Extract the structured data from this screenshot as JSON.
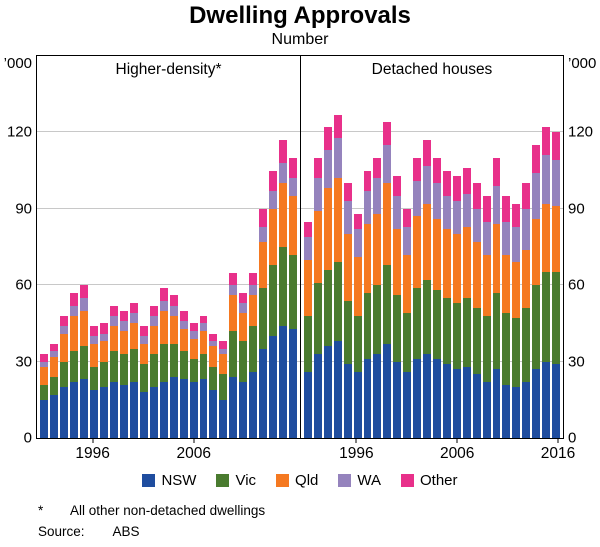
{
  "title": "Dwelling Approvals",
  "subtitle": "Number",
  "y_axis": {
    "unit": "’000",
    "ticks": [
      0,
      30,
      60,
      90,
      120
    ],
    "max": 150
  },
  "footnote": {
    "marker": "*",
    "text": "All other non-detached dwellings"
  },
  "source": {
    "label": "Source:",
    "value": "ABS"
  },
  "chart_data": [
    {
      "type": "bar",
      "stacked": true,
      "panel": "Higher-density*",
      "ylim": [
        0,
        150
      ],
      "years": [
        1991,
        1992,
        1993,
        1994,
        1995,
        1996,
        1997,
        1998,
        1999,
        2000,
        2001,
        2002,
        2003,
        2004,
        2005,
        2006,
        2007,
        2008,
        2009,
        2010,
        2011,
        2012,
        2013,
        2014,
        2015,
        2016
      ],
      "x_tick_labels": [
        "1996",
        "2006"
      ],
      "series": [
        {
          "name": "NSW",
          "color": "#1f4d9f",
          "values": [
            15,
            17,
            20,
            22,
            23,
            19,
            20,
            22,
            21,
            22,
            18,
            20,
            22,
            24,
            23,
            22,
            23,
            19,
            15,
            24,
            22,
            26,
            35,
            40,
            44,
            43
          ]
        },
        {
          "name": "Vic",
          "color": "#4a7b2f",
          "values": [
            6,
            7,
            10,
            12,
            13,
            9,
            10,
            12,
            12,
            13,
            11,
            13,
            15,
            13,
            11,
            9,
            10,
            9,
            10,
            18,
            16,
            18,
            24,
            28,
            31,
            29
          ]
        },
        {
          "name": "Qld",
          "color": "#f57921",
          "values": [
            7,
            8,
            11,
            14,
            14,
            9,
            8,
            10,
            9,
            10,
            8,
            11,
            13,
            11,
            9,
            8,
            9,
            8,
            8,
            14,
            11,
            12,
            18,
            22,
            25,
            23
          ]
        },
        {
          "name": "WA",
          "color": "#9583bd",
          "values": [
            2,
            2,
            3,
            4,
            5,
            3,
            3,
            4,
            4,
            4,
            3,
            4,
            4,
            4,
            3,
            3,
            3,
            2,
            2,
            4,
            4,
            4,
            6,
            7,
            8,
            7
          ]
        },
        {
          "name": "Other",
          "color": "#e8308a",
          "values": [
            3,
            3,
            4,
            5,
            5,
            4,
            4,
            4,
            4,
            4,
            4,
            4,
            5,
            4,
            4,
            3,
            3,
            3,
            3,
            5,
            4,
            5,
            7,
            8,
            9,
            8
          ]
        }
      ]
    },
    {
      "type": "bar",
      "stacked": true,
      "panel": "Detached houses",
      "ylim": [
        0,
        150
      ],
      "years": [
        1991,
        1992,
        1993,
        1994,
        1995,
        1996,
        1997,
        1998,
        1999,
        2000,
        2001,
        2002,
        2003,
        2004,
        2005,
        2006,
        2007,
        2008,
        2009,
        2010,
        2011,
        2012,
        2013,
        2014,
        2015,
        2016
      ],
      "x_tick_labels": [
        "1996",
        "2006",
        "2016"
      ],
      "series": [
        {
          "name": "NSW",
          "color": "#1f4d9f",
          "values": [
            26,
            33,
            36,
            38,
            29,
            26,
            31,
            33,
            37,
            30,
            26,
            31,
            33,
            31,
            29,
            27,
            28,
            25,
            22,
            27,
            21,
            20,
            22,
            27,
            30,
            29
          ]
        },
        {
          "name": "Vic",
          "color": "#4a7b2f",
          "values": [
            22,
            28,
            30,
            31,
            25,
            22,
            26,
            27,
            31,
            26,
            23,
            28,
            29,
            27,
            26,
            26,
            27,
            26,
            26,
            30,
            28,
            27,
            29,
            33,
            35,
            36
          ]
        },
        {
          "name": "Qld",
          "color": "#f57921",
          "values": [
            22,
            28,
            32,
            33,
            26,
            23,
            27,
            28,
            32,
            26,
            23,
            28,
            30,
            28,
            27,
            27,
            28,
            26,
            24,
            27,
            23,
            22,
            23,
            26,
            27,
            26
          ]
        },
        {
          "name": "WA",
          "color": "#9583bd",
          "values": [
            9,
            13,
            15,
            16,
            13,
            11,
            13,
            14,
            15,
            13,
            11,
            14,
            15,
            14,
            13,
            13,
            13,
            13,
            13,
            15,
            13,
            14,
            16,
            18,
            19,
            18
          ]
        },
        {
          "name": "Other",
          "color": "#e8308a",
          "values": [
            6,
            8,
            9,
            9,
            7,
            6,
            8,
            8,
            9,
            8,
            7,
            9,
            10,
            10,
            10,
            10,
            10,
            10,
            10,
            11,
            10,
            9,
            10,
            11,
            11,
            11
          ]
        }
      ]
    }
  ]
}
